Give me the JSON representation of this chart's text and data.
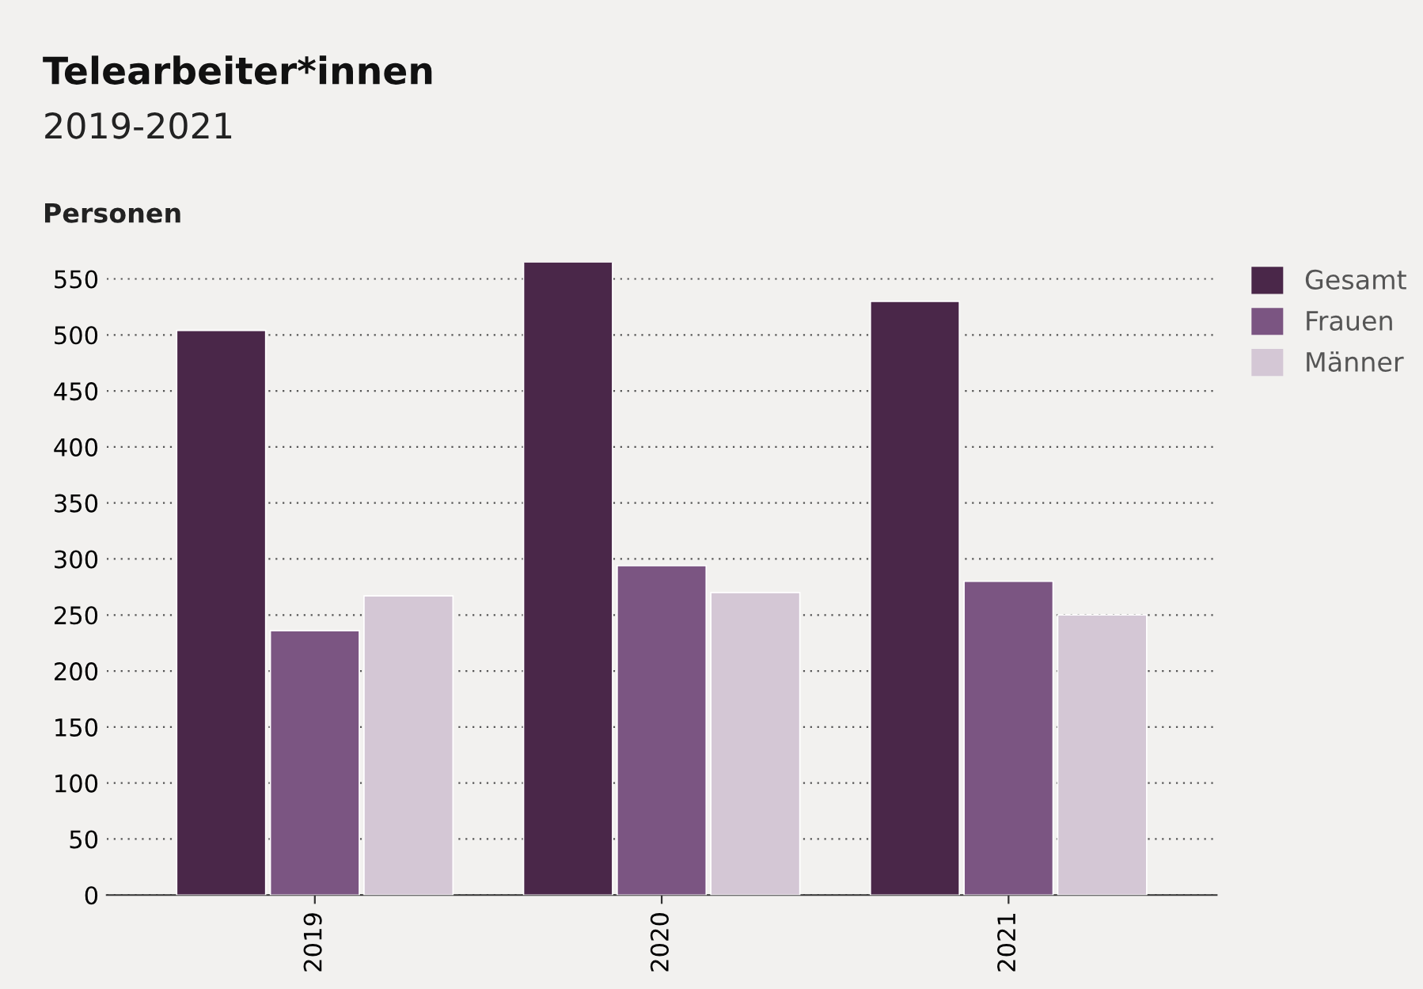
{
  "chart_data": {
    "type": "bar",
    "title": "Telearbeiter*innen",
    "subtitle": "2019-2021",
    "ylabel": "Personen",
    "categories": [
      "2019",
      "2020",
      "2021"
    ],
    "series": [
      {
        "name": "Gesamt",
        "color": "#4a2749",
        "values": [
          504,
          565,
          530
        ]
      },
      {
        "name": "Frauen",
        "color": "#7b5582",
        "values": [
          236,
          294,
          280
        ]
      },
      {
        "name": "Männer",
        "color": "#d4c7d5",
        "values": [
          267,
          270,
          250
        ]
      }
    ],
    "ylim": [
      0,
      565
    ],
    "yticks": [
      0,
      50,
      100,
      150,
      200,
      250,
      300,
      350,
      400,
      450,
      500,
      550
    ],
    "grid": "y",
    "legend": "top right"
  }
}
